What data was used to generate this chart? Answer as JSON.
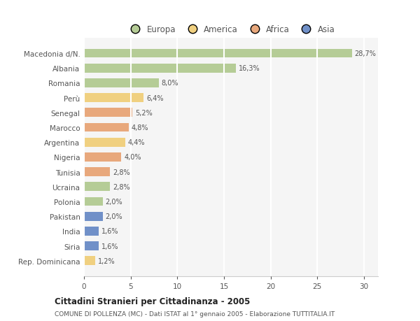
{
  "categories": [
    "Macedonia d/N.",
    "Albania",
    "Romania",
    "Perù",
    "Senegal",
    "Marocco",
    "Argentina",
    "Nigeria",
    "Tunisia",
    "Ucraina",
    "Polonia",
    "Pakistan",
    "India",
    "Siria",
    "Rep. Dominicana"
  ],
  "values": [
    28.7,
    16.3,
    8.0,
    6.4,
    5.2,
    4.8,
    4.4,
    4.0,
    2.8,
    2.8,
    2.0,
    2.0,
    1.6,
    1.6,
    1.2
  ],
  "labels": [
    "28,7%",
    "16,3%",
    "8,0%",
    "6,4%",
    "5,2%",
    "4,8%",
    "4,4%",
    "4,0%",
    "2,8%",
    "2,8%",
    "2,0%",
    "2,0%",
    "1,6%",
    "1,6%",
    "1,2%"
  ],
  "continents": [
    "Europa",
    "Europa",
    "Europa",
    "America",
    "Africa",
    "Africa",
    "America",
    "Africa",
    "Africa",
    "Europa",
    "Europa",
    "Asia",
    "Asia",
    "Asia",
    "America"
  ],
  "colors": {
    "Europa": "#b5cc96",
    "America": "#f0d080",
    "Africa": "#e8a87c",
    "Asia": "#7090c8"
  },
  "title": "Cittadini Stranieri per Cittadinanza - 2005",
  "subtitle": "COMUNE DI POLLENZA (MC) - Dati ISTAT al 1° gennaio 2005 - Elaborazione TUTTITALIA.IT",
  "xlim": [
    0,
    31.5
  ],
  "xticks": [
    0,
    5,
    10,
    15,
    20,
    25,
    30
  ],
  "background_color": "#ffffff",
  "plot_bg_color": "#f5f5f5",
  "grid_color": "#ffffff",
  "bar_height": 0.6,
  "legend_entries": [
    "Europa",
    "America",
    "Africa",
    "Asia"
  ],
  "legend_circle_colors": [
    "#b5cc96",
    "#f0d080",
    "#e8a87c",
    "#7090c8"
  ]
}
